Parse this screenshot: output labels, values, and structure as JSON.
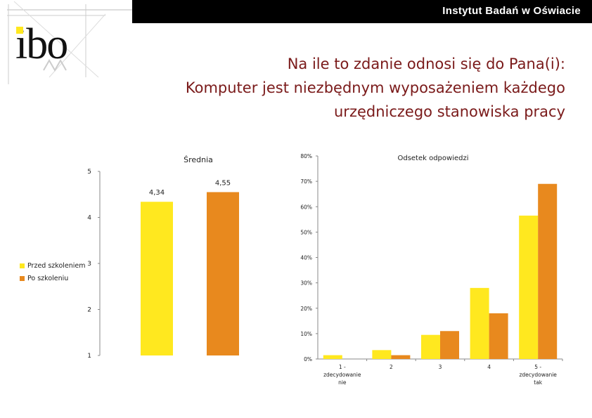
{
  "header": {
    "institute_name": "Instytut Badań w Oświacie",
    "logo_text": "ibo"
  },
  "title_lines": [
    "Na ile to zdanie odnosi się do Pana(i):",
    "Komputer jest niezbędnym wyposażeniem każdego",
    "urzędniczego stanowiska pracy"
  ],
  "colors": {
    "before": "#FFE81F",
    "after": "#E8891E",
    "title": "#7a1a1a"
  },
  "legend": {
    "before": "Przed szkoleniem",
    "after": "Po szkoleniu"
  },
  "chart_data": [
    {
      "type": "bar",
      "title": "Średnia",
      "series": [
        {
          "name": "Przed szkoleniem",
          "values": [
            4.34
          ]
        },
        {
          "name": "Po szkoleniu",
          "values": [
            4.55
          ]
        }
      ],
      "data_labels": [
        "4,34",
        "4,55"
      ],
      "ylim": [
        1,
        5
      ],
      "yticks": [
        "1",
        "2",
        "3",
        "4",
        "5"
      ],
      "grid": false
    },
    {
      "type": "bar",
      "title": "Odsetek odpowiedzi",
      "categories": [
        "1 - zdecydowanie nie",
        "2",
        "3",
        "4",
        "5 - zdecydowanie tak"
      ],
      "category_label_lines": [
        [
          "1 -",
          "zdecydowanie",
          "nie"
        ],
        [
          "2"
        ],
        [
          "3"
        ],
        [
          "4"
        ],
        [
          "5 -",
          "zdecydowanie",
          "tak"
        ]
      ],
      "series": [
        {
          "name": "Przed szkoleniem",
          "values": [
            1.5,
            3.5,
            9.5,
            28,
            56.5
          ]
        },
        {
          "name": "Po szkoleniu",
          "values": [
            0,
            1.5,
            11,
            18,
            69
          ]
        }
      ],
      "ylim": [
        0,
        80
      ],
      "yticks": [
        "0%",
        "10%",
        "20%",
        "30%",
        "40%",
        "50%",
        "60%",
        "70%",
        "80%"
      ],
      "grid": false
    }
  ]
}
